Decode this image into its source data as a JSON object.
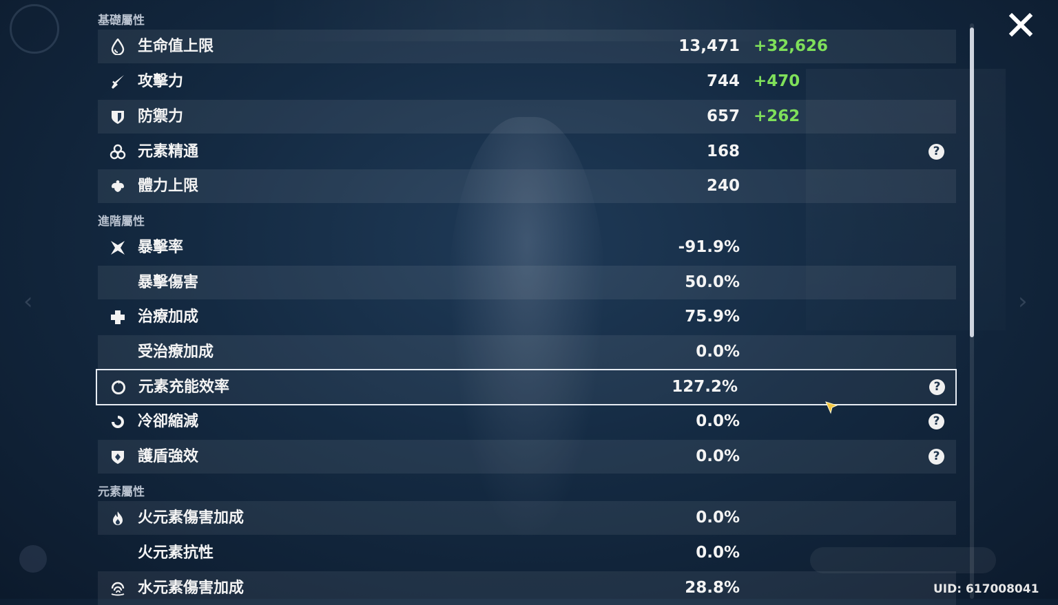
{
  "sections": {
    "base": "基礎屬性",
    "advanced": "進階屬性",
    "elemental": "元素屬性"
  },
  "rows": [
    {
      "label": "生命值上限",
      "value": "13,471",
      "bonus": "+32,626",
      "icon": "hp-drop-icon"
    },
    {
      "label": "攻擊力",
      "value": "744",
      "bonus": "+470",
      "icon": "sword-icon"
    },
    {
      "label": "防禦力",
      "value": "657",
      "bonus": "+262",
      "icon": "shield-icon"
    },
    {
      "label": "元素精通",
      "value": "168",
      "icon": "elemental-mastery-icon",
      "help": "?"
    },
    {
      "label": "體力上限",
      "value": "240",
      "icon": "stamina-icon"
    },
    {
      "label": "暴擊率",
      "value": "-91.9%",
      "icon": "crit-star-icon"
    },
    {
      "label": "暴擊傷害",
      "value": "50.0%"
    },
    {
      "label": "治療加成",
      "value": "75.9%",
      "icon": "healing-cross-icon"
    },
    {
      "label": "受治療加成",
      "value": "0.0%"
    },
    {
      "label": "元素充能效率",
      "value": "127.2%",
      "icon": "energy-recharge-icon",
      "help": "?"
    },
    {
      "label": "冷卻縮減",
      "value": "0.0%",
      "icon": "cooldown-icon",
      "help": "?"
    },
    {
      "label": "護盾強效",
      "value": "0.0%",
      "icon": "shield-strength-icon",
      "help": "?"
    },
    {
      "label": "火元素傷害加成",
      "value": "0.0%",
      "icon": "pyro-icon"
    },
    {
      "label": "火元素抗性",
      "value": "0.0%"
    },
    {
      "label": "水元素傷害加成",
      "value": "28.8%",
      "icon": "hydro-icon"
    }
  ],
  "uid": "UID: 617008041",
  "colors": {
    "bonus": "#7fe05a",
    "text": "#f4f4f4",
    "section": "#b9c2cf"
  }
}
